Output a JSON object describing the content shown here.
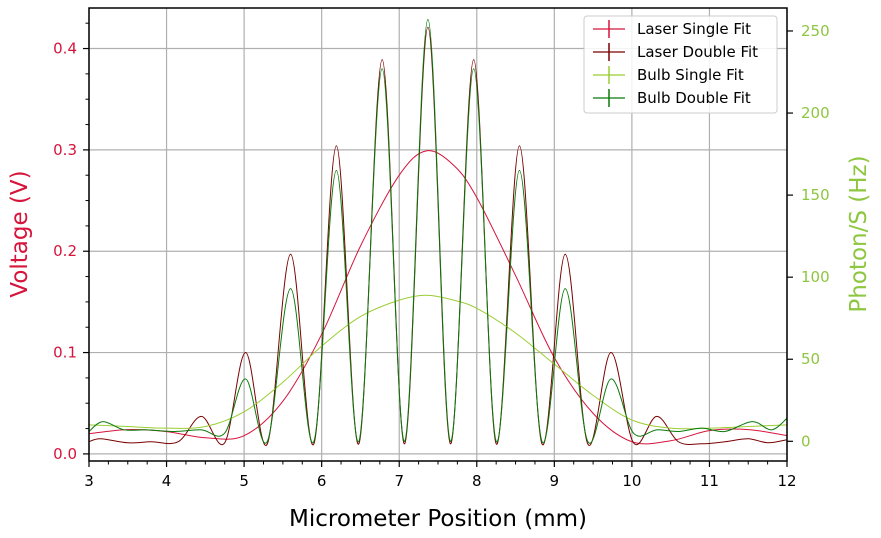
{
  "chart_data": {
    "type": "line",
    "xlabel": "Micrometer Position (mm)",
    "ylabel_left": "Voltage (V)",
    "ylabel_right": "Photon/S (Hz)",
    "xlim": [
      3,
      12
    ],
    "ylim_left": [
      -0.007,
      0.44
    ],
    "ylim_right": [
      -12,
      264
    ],
    "x_ticks": [
      "3",
      "4",
      "5",
      "6",
      "7",
      "8",
      "9",
      "10",
      "11",
      "12"
    ],
    "y_left_ticks": [
      "0.0",
      "0.1",
      "0.2",
      "0.3",
      "0.4"
    ],
    "y_right_ticks": [
      "0",
      "50",
      "100",
      "150",
      "200",
      "250"
    ],
    "grid": true,
    "legend_placement": "top-right",
    "colors": {
      "left_axis": "#d6143c",
      "right_axis": "#8dc63f",
      "laser_single": "#d6143c",
      "laser_double": "#7a0000",
      "bulb_single": "#9acd32",
      "bulb_double": "#0a7a0a"
    },
    "series": [
      {
        "name": "Laser Single Fit",
        "axis": "left",
        "x": [
          3.0,
          3.5,
          4.0,
          4.5,
          5.0,
          5.5,
          6.0,
          6.5,
          7.0,
          7.35,
          7.7,
          8.0,
          8.5,
          9.0,
          9.5,
          10.0,
          10.5,
          11.0,
          11.5,
          12.0
        ],
        "y": [
          0.02,
          0.024,
          0.022,
          0.016,
          0.018,
          0.052,
          0.118,
          0.205,
          0.275,
          0.299,
          0.285,
          0.253,
          0.176,
          0.095,
          0.04,
          0.012,
          0.013,
          0.023,
          0.024,
          0.018
        ]
      },
      {
        "name": "Laser Double Fit",
        "axis": "left",
        "x": [
          3.0,
          3.15,
          3.5,
          3.8,
          4.15,
          4.45,
          4.75,
          5.02,
          5.3,
          5.6,
          5.9,
          6.19,
          6.48,
          6.78,
          7.07,
          7.37,
          7.66,
          7.96,
          8.25,
          8.55,
          8.84,
          9.14,
          9.43,
          9.73,
          10.02,
          10.32,
          10.6,
          10.9,
          11.2,
          11.5,
          11.75,
          12.0
        ],
        "y": [
          0.012,
          0.015,
          0.011,
          0.012,
          0.012,
          0.037,
          0.011,
          0.1,
          0.01,
          0.197,
          0.01,
          0.304,
          0.01,
          0.389,
          0.01,
          0.421,
          0.01,
          0.389,
          0.01,
          0.304,
          0.01,
          0.197,
          0.01,
          0.1,
          0.011,
          0.037,
          0.012,
          0.01,
          0.012,
          0.015,
          0.011,
          0.014
        ]
      },
      {
        "name": "Bulb Single Fit",
        "axis": "right",
        "x": [
          3.0,
          3.5,
          4.0,
          4.5,
          5.0,
          5.5,
          6.0,
          6.5,
          7.0,
          7.35,
          7.7,
          8.0,
          8.5,
          9.0,
          9.5,
          10.0,
          10.5,
          11.0,
          11.5,
          12.0
        ],
        "y": [
          10,
          9,
          8,
          9,
          18,
          36,
          58,
          76,
          86,
          89,
          86,
          81,
          66,
          47,
          28,
          13,
          8,
          8,
          9,
          10
        ]
      },
      {
        "name": "Bulb Double Fit",
        "axis": "right",
        "x": [
          3.0,
          3.18,
          3.45,
          3.75,
          4.1,
          4.45,
          4.75,
          5.02,
          5.3,
          5.6,
          5.9,
          6.19,
          6.48,
          6.78,
          7.07,
          7.37,
          7.66,
          7.96,
          8.25,
          8.55,
          8.84,
          9.14,
          9.43,
          9.73,
          10.02,
          10.32,
          10.6,
          10.9,
          11.2,
          11.55,
          11.8,
          12.0
        ],
        "y": [
          6,
          12,
          7,
          7,
          6,
          7,
          5,
          38,
          0,
          93,
          0,
          165,
          0,
          227,
          0,
          257,
          0,
          227,
          0,
          165,
          0,
          93,
          0,
          38,
          5,
          7,
          6,
          8,
          6,
          12,
          7,
          14
        ]
      }
    ],
    "legend": [
      "Laser Single Fit",
      "Laser Double Fit",
      "Bulb Single Fit",
      "Bulb Double Fit"
    ]
  }
}
